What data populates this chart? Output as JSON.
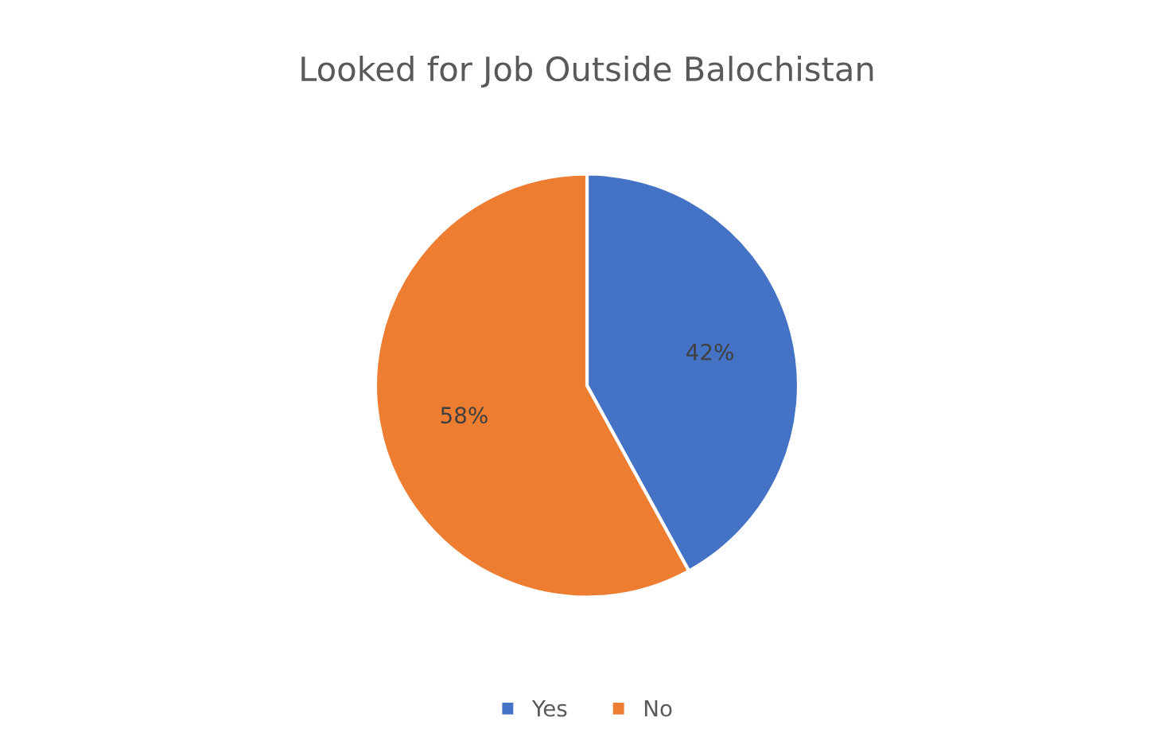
{
  "chart_data": {
    "type": "pie",
    "title": "Looked for Job Outside Balochistan",
    "categories": [
      "Yes",
      "No"
    ],
    "values": [
      42,
      58
    ],
    "colors": [
      "#4472c4",
      "#ed7d31"
    ],
    "value_labels": [
      "42%",
      "58%"
    ],
    "legend": "bottom"
  }
}
